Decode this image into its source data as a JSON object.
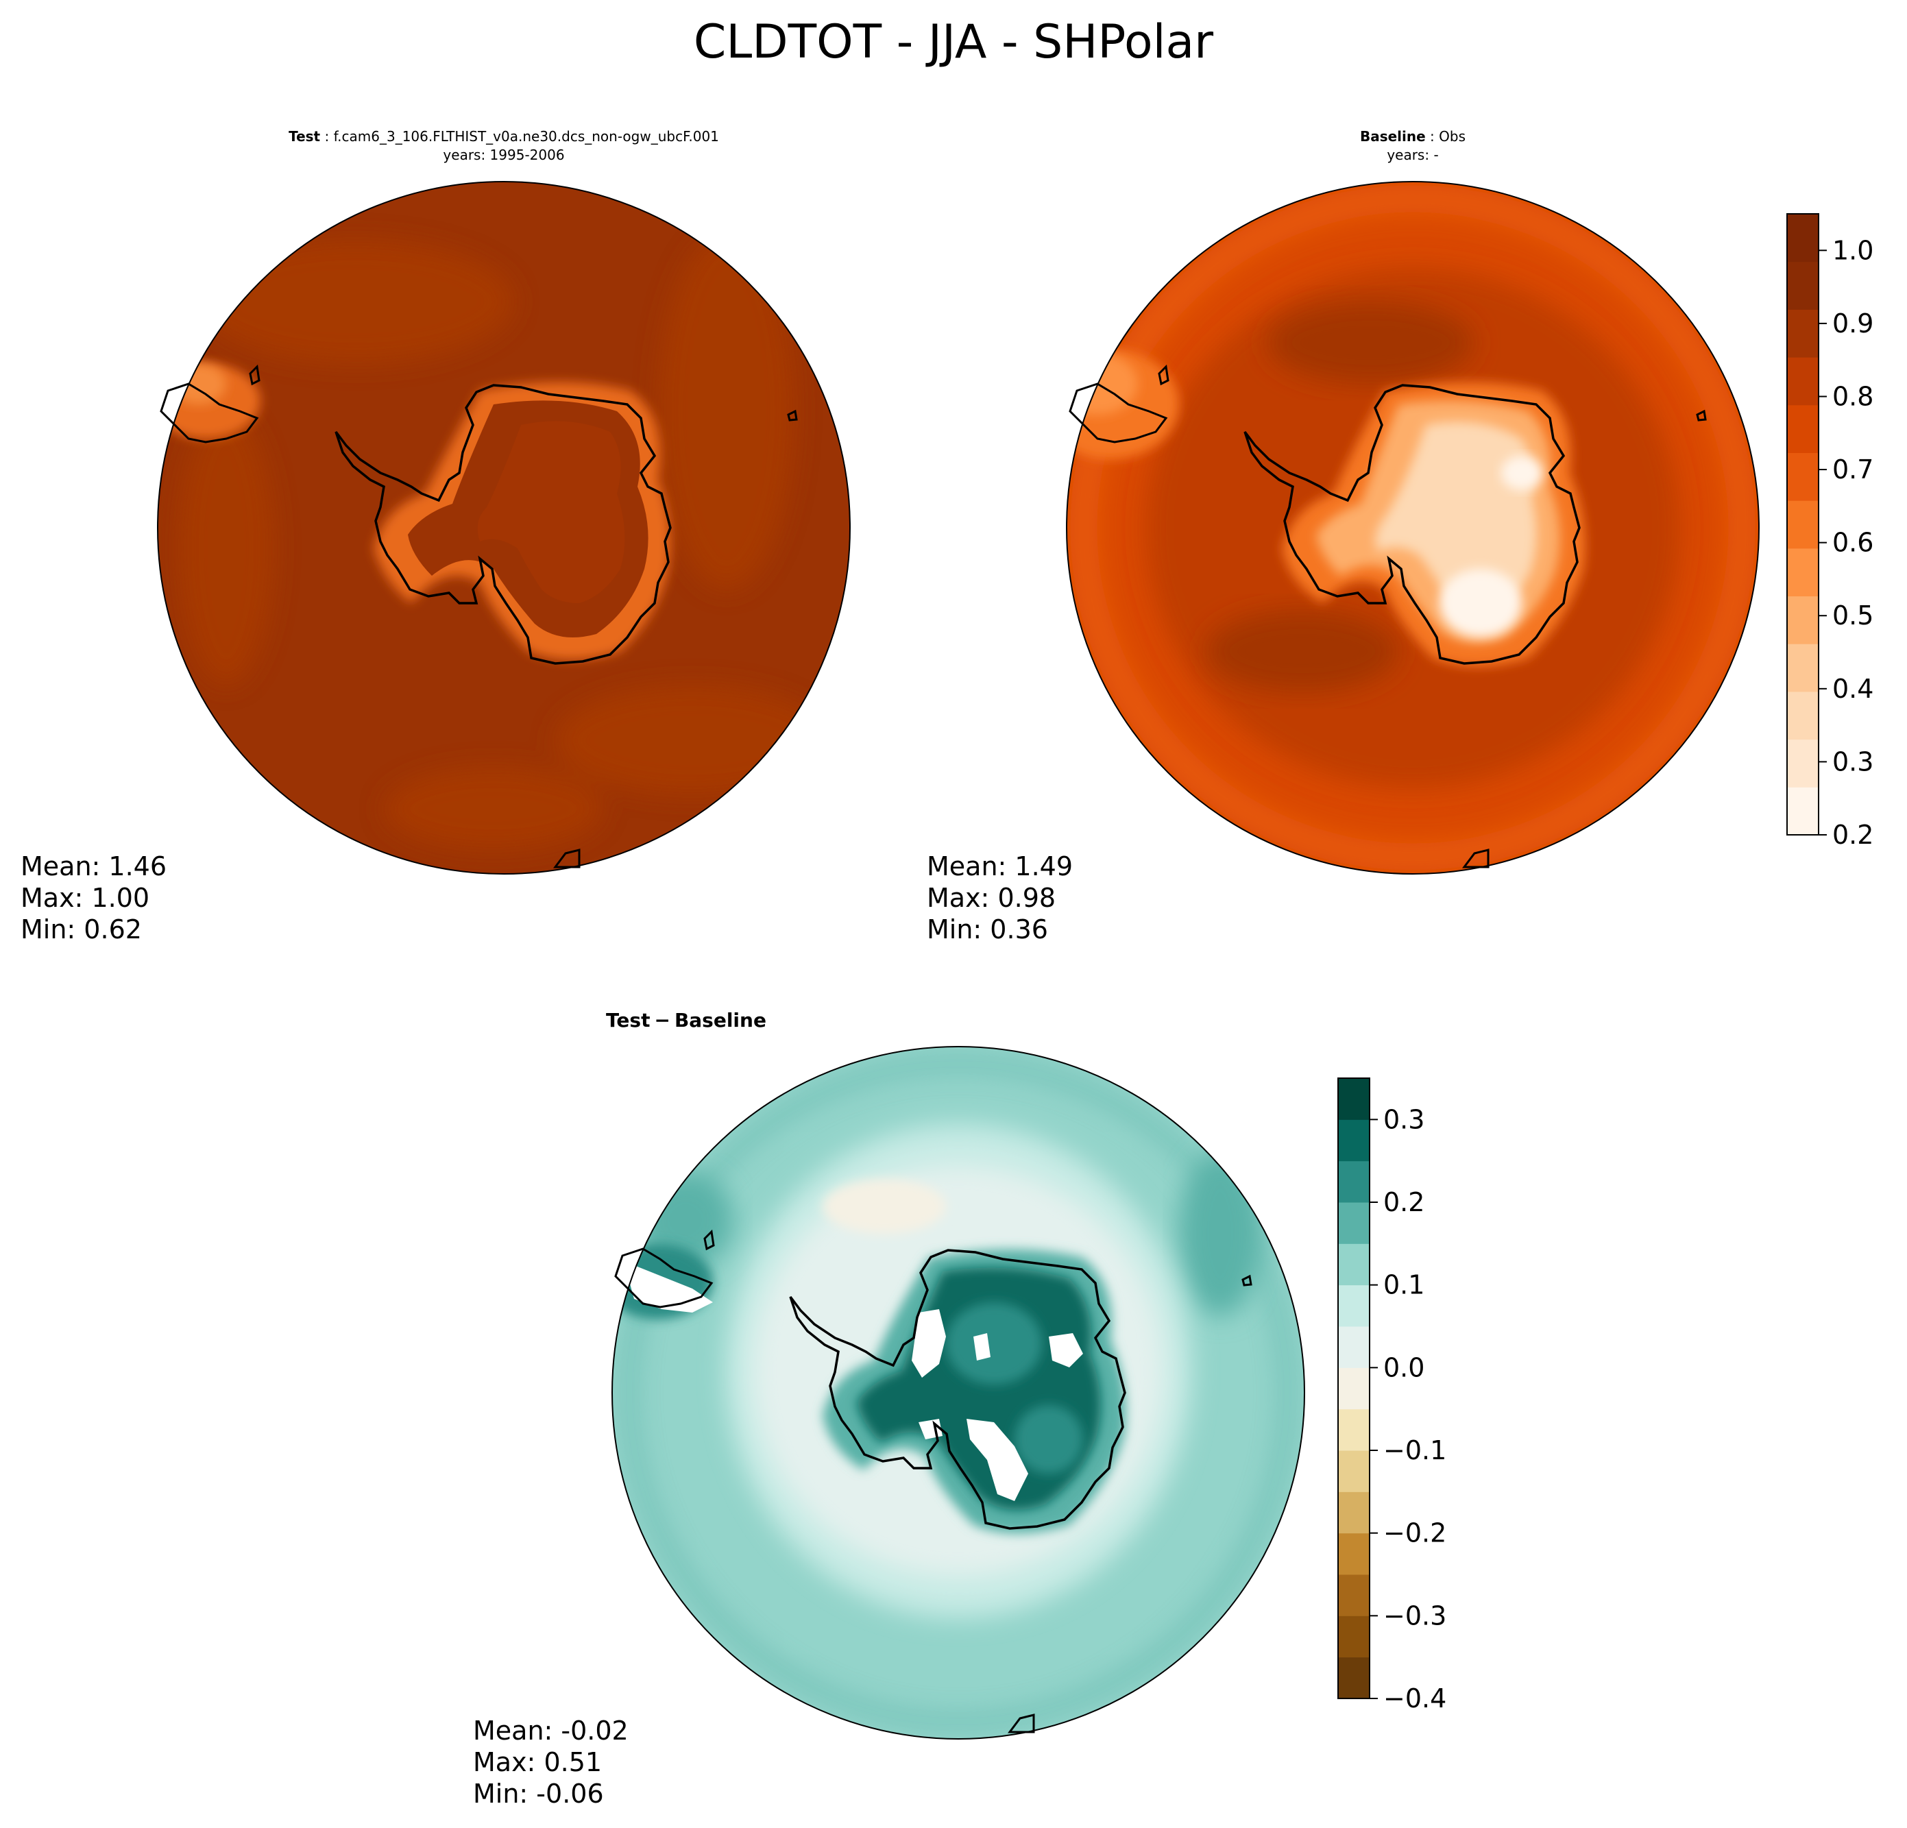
{
  "figure": {
    "suptitle": "CLDTOT - JJA - SHPolar"
  },
  "panels": {
    "test": {
      "label": "Test",
      "case": "f.cam6_3_106.FLTHIST_v0a.ne30.dcs_non-ogw_ubcF.001",
      "years": "years: 1995-2006",
      "stats": {
        "mean": "Mean:  1.46",
        "max": "Max:  1.00",
        "min": "Min:  0.62"
      }
    },
    "baseline": {
      "label": "Baseline",
      "case": "Obs",
      "years": "years: -",
      "stats": {
        "mean": "Mean:  1.49",
        "max": "Max:  0.98",
        "min": "Min:  0.36"
      }
    },
    "diff": {
      "title_a": "Test",
      "title_sep": "−",
      "title_b": "Baseline",
      "stats": {
        "mean": "Mean: -0.02",
        "max": "Max:  0.51",
        "min": "Min: -0.06"
      }
    }
  },
  "colorbars": {
    "main": {
      "ticks": [
        "0.2",
        "0.3",
        "0.4",
        "0.5",
        "0.6",
        "0.7",
        "0.8",
        "0.9",
        "1.0"
      ],
      "colors": [
        "#fff5eb",
        "#fee6ce",
        "#fdd9b4",
        "#fdc794",
        "#fdae6b",
        "#fd9243",
        "#f57622",
        "#e85a0d",
        "#d94801",
        "#c03d02",
        "#a33503",
        "#8a2c04",
        "#7f2704"
      ]
    },
    "diff": {
      "ticks": [
        "−0.4",
        "−0.3",
        "−0.2",
        "−0.1",
        "0.0",
        "0.1",
        "0.2",
        "0.3"
      ],
      "colors": [
        "#6b3d09",
        "#8a510c",
        "#a66819",
        "#c3882f",
        "#d7b062",
        "#e8cf8f",
        "#f3e5b8",
        "#f5f1e4",
        "#e4f1ee",
        "#c7ebe5",
        "#93d4ca",
        "#5ab2a8",
        "#2a8d85",
        "#07695f",
        "#01473c"
      ]
    }
  },
  "chart_data": [
    {
      "type": "heatmap",
      "title": "Test : f.cam6_3_106.FLTHIST_v0a.ne30.dcs_non-ogw_ubcF.001",
      "subtitle": "years: 1995-2006",
      "variable": "CLDTOT",
      "season": "JJA",
      "region": "SHPolar",
      "colorbar_range": [
        0.2,
        1.05
      ],
      "mean": 1.46,
      "max": 1.0,
      "min": 0.62
    },
    {
      "type": "heatmap",
      "title": "Baseline : Obs",
      "subtitle": "years: -",
      "variable": "CLDTOT",
      "season": "JJA",
      "region": "SHPolar",
      "colorbar_range": [
        0.2,
        1.05
      ],
      "mean": 1.49,
      "max": 0.98,
      "min": 0.36
    },
    {
      "type": "heatmap",
      "title": "Test − Baseline",
      "variable": "CLDTOT",
      "colorbar_range": [
        -0.4,
        0.35
      ],
      "mean": -0.02,
      "max": 0.51,
      "min": -0.06
    }
  ]
}
